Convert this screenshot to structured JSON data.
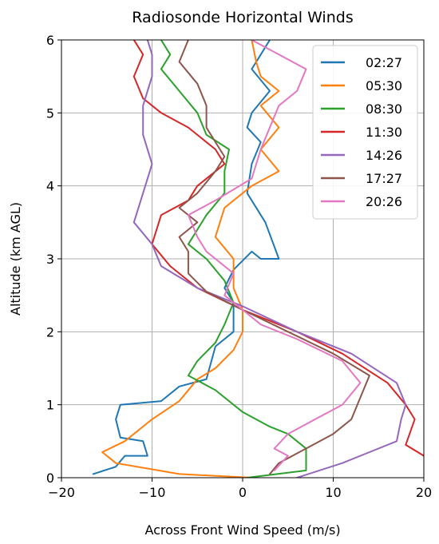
{
  "chart_data": {
    "type": "line",
    "title": "Radiosonde Horizontal Winds",
    "xlabel": "Across Front Wind Speed (m/s)",
    "ylabel": "Altitude (km AGL)",
    "xlim": [
      -20,
      20
    ],
    "ylim": [
      0,
      6
    ],
    "xticks": [
      "−20",
      "−10",
      "0",
      "10",
      "20"
    ],
    "yticks": [
      "0",
      "1",
      "2",
      "3",
      "4",
      "5",
      "6"
    ],
    "grid": true,
    "legend_position": "top-right",
    "series": [
      {
        "name": "02:27",
        "color": "#1f77b4",
        "points": [
          [
            -16.5,
            0.05
          ],
          [
            -14,
            0.15
          ],
          [
            -13,
            0.3
          ],
          [
            -10.5,
            0.3
          ],
          [
            -11,
            0.5
          ],
          [
            -13.5,
            0.55
          ],
          [
            -14,
            0.8
          ],
          [
            -13.5,
            1.0
          ],
          [
            -9,
            1.05
          ],
          [
            -7,
            1.25
          ],
          [
            -4,
            1.35
          ],
          [
            -3,
            1.8
          ],
          [
            -1,
            2.0
          ],
          [
            -1,
            2.4
          ],
          [
            -2,
            2.6
          ],
          [
            -1,
            2.85
          ],
          [
            1,
            3.1
          ],
          [
            2,
            3.0
          ],
          [
            4,
            3.0
          ],
          [
            2.5,
            3.5
          ],
          [
            0.5,
            3.9
          ],
          [
            1,
            4.3
          ],
          [
            2,
            4.6
          ],
          [
            0.5,
            4.8
          ],
          [
            1,
            5.0
          ],
          [
            3,
            5.3
          ],
          [
            1,
            5.6
          ],
          [
            2,
            5.8
          ],
          [
            3,
            6.0
          ]
        ]
      },
      {
        "name": "05:30",
        "color": "#ff7f0e",
        "points": [
          [
            1,
            0.0
          ],
          [
            -7,
            0.05
          ],
          [
            -14,
            0.2
          ],
          [
            -15.5,
            0.35
          ],
          [
            -13,
            0.5
          ],
          [
            -10,
            0.8
          ],
          [
            -7,
            1.05
          ],
          [
            -5,
            1.35
          ],
          [
            -3,
            1.5
          ],
          [
            -1,
            1.75
          ],
          [
            0,
            2.0
          ],
          [
            0,
            2.3
          ],
          [
            -1,
            2.6
          ],
          [
            -1,
            3.0
          ],
          [
            -3,
            3.3
          ],
          [
            -2,
            3.7
          ],
          [
            1,
            4.0
          ],
          [
            4,
            4.2
          ],
          [
            2,
            4.5
          ],
          [
            4,
            4.8
          ],
          [
            2,
            5.1
          ],
          [
            4,
            5.3
          ],
          [
            2,
            5.5
          ],
          [
            1.5,
            5.7
          ],
          [
            1,
            6.0
          ]
        ]
      },
      {
        "name": "08:30",
        "color": "#2ca02c",
        "points": [
          [
            0.5,
            0.0
          ],
          [
            7,
            0.1
          ],
          [
            7,
            0.4
          ],
          [
            5,
            0.6
          ],
          [
            3,
            0.7
          ],
          [
            0,
            0.9
          ],
          [
            -3,
            1.2
          ],
          [
            -6,
            1.4
          ],
          [
            -5,
            1.6
          ],
          [
            -3,
            1.85
          ],
          [
            -2,
            2.1
          ],
          [
            -1,
            2.4
          ],
          [
            -2,
            2.7
          ],
          [
            -4,
            3.0
          ],
          [
            -6,
            3.2
          ],
          [
            -4,
            3.6
          ],
          [
            -2,
            3.9
          ],
          [
            -2,
            4.2
          ],
          [
            -1.5,
            4.5
          ],
          [
            -4,
            4.7
          ],
          [
            -5,
            5.0
          ],
          [
            -7,
            5.3
          ],
          [
            -9,
            5.6
          ],
          [
            -8,
            5.8
          ],
          [
            -9,
            6.0
          ]
        ]
      },
      {
        "name": "11:30",
        "color": "#d62728",
        "points": [
          [
            20,
            0.3
          ],
          [
            18,
            0.45
          ],
          [
            19,
            0.8
          ],
          [
            18,
            1.0
          ],
          [
            16,
            1.3
          ],
          [
            11,
            1.7
          ],
          [
            6,
            2.0
          ],
          [
            0,
            2.3
          ],
          [
            -5,
            2.6
          ],
          [
            -8,
            2.9
          ],
          [
            -10,
            3.2
          ],
          [
            -9,
            3.6
          ],
          [
            -6,
            3.8
          ],
          [
            -5,
            4.0
          ],
          [
            -2,
            4.3
          ],
          [
            -3,
            4.5
          ],
          [
            -6,
            4.8
          ],
          [
            -9,
            5.0
          ],
          [
            -11,
            5.2
          ],
          [
            -12,
            5.5
          ],
          [
            -11,
            5.8
          ],
          [
            -12,
            6.0
          ]
        ]
      },
      {
        "name": "14:26",
        "color": "#9467bd",
        "points": [
          [
            6,
            0.0
          ],
          [
            11,
            0.2
          ],
          [
            14,
            0.35
          ],
          [
            17,
            0.5
          ],
          [
            17.5,
            0.8
          ],
          [
            18,
            1.0
          ],
          [
            17,
            1.3
          ],
          [
            12,
            1.7
          ],
          [
            6,
            2.0
          ],
          [
            0,
            2.35
          ],
          [
            -5,
            2.6
          ],
          [
            -9,
            2.9
          ],
          [
            -10,
            3.2
          ],
          [
            -12,
            3.5
          ],
          [
            -11,
            3.9
          ],
          [
            -10,
            4.3
          ],
          [
            -11,
            4.7
          ],
          [
            -11,
            5.1
          ],
          [
            -10,
            5.5
          ],
          [
            -10,
            5.8
          ],
          [
            -10.5,
            6.0
          ]
        ]
      },
      {
        "name": "17:27",
        "color": "#8c564b",
        "points": [
          [
            3,
            0.05
          ],
          [
            4,
            0.2
          ],
          [
            7,
            0.4
          ],
          [
            10,
            0.6
          ],
          [
            12,
            0.8
          ],
          [
            13,
            1.1
          ],
          [
            14,
            1.4
          ],
          [
            10,
            1.7
          ],
          [
            5,
            2.0
          ],
          [
            0,
            2.3
          ],
          [
            -4,
            2.55
          ],
          [
            -6,
            2.8
          ],
          [
            -6,
            3.1
          ],
          [
            -7,
            3.3
          ],
          [
            -5,
            3.5
          ],
          [
            -7,
            3.7
          ],
          [
            -5,
            3.9
          ],
          [
            -3,
            4.2
          ],
          [
            -2,
            4.4
          ],
          [
            -3,
            4.6
          ],
          [
            -4,
            4.8
          ],
          [
            -4,
            5.1
          ],
          [
            -5,
            5.4
          ],
          [
            -7,
            5.7
          ],
          [
            -6,
            6.0
          ]
        ]
      },
      {
        "name": "20:26",
        "color": "#e377c2",
        "points": [
          [
            3.5,
            0.1
          ],
          [
            5,
            0.3
          ],
          [
            3.5,
            0.4
          ],
          [
            5,
            0.6
          ],
          [
            8,
            0.8
          ],
          [
            11,
            1.0
          ],
          [
            13,
            1.3
          ],
          [
            11,
            1.6
          ],
          [
            6,
            1.9
          ],
          [
            2,
            2.1
          ],
          [
            0,
            2.3
          ],
          [
            -2,
            2.5
          ],
          [
            -1,
            2.8
          ],
          [
            -4,
            3.1
          ],
          [
            -5,
            3.3
          ],
          [
            -6,
            3.6
          ],
          [
            -3,
            3.8
          ],
          [
            1,
            4.1
          ],
          [
            2,
            4.5
          ],
          [
            3,
            4.8
          ],
          [
            4,
            5.1
          ],
          [
            6,
            5.3
          ],
          [
            7,
            5.6
          ],
          [
            4,
            5.8
          ],
          [
            1,
            6.0
          ]
        ]
      }
    ]
  }
}
